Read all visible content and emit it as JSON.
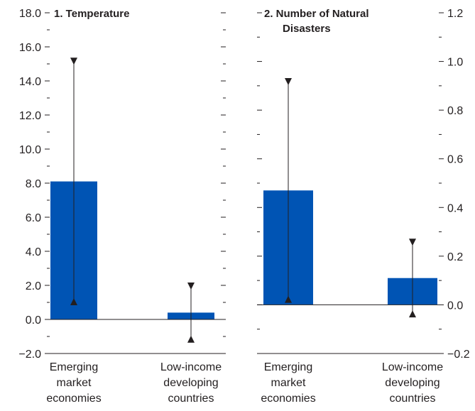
{
  "chart_data": [
    {
      "type": "bar",
      "title": "1. Temperature",
      "title_lines": [
        "1. Temperature"
      ],
      "categories": [
        "Emerging market economies",
        "Low-income developing countries"
      ],
      "category_lines": [
        [
          "Emerging",
          "market",
          "economies"
        ],
        [
          "Low-income",
          "developing",
          "countries"
        ]
      ],
      "values": [
        8.1,
        0.4
      ],
      "upper": [
        15.2,
        2.0
      ],
      "lower": [
        1.0,
        -1.2
      ],
      "ylim": [
        -2.0,
        18.0
      ],
      "left_ticks": [
        -2.0,
        0.0,
        2.0,
        4.0,
        6.0,
        8.0,
        10.0,
        12.0,
        14.0,
        16.0,
        18.0
      ],
      "left_tick_labels": [
        "−2.0",
        "0.0",
        "2.0",
        "4.0",
        "6.0",
        "8.0",
        "10.0",
        "12.0",
        "14.0",
        "16.0",
        "18.0"
      ],
      "minor_ticks": [
        -1.0,
        1.0,
        3.0,
        5.0,
        7.0,
        9.0,
        11.0,
        13.0,
        15.0,
        17.0
      ],
      "bar_color": "#0054b4"
    },
    {
      "type": "bar",
      "title": "2. Number of Natural Disasters",
      "title_lines": [
        "2. Number of Natural",
        "Disasters"
      ],
      "categories": [
        "Emerging market economies",
        "Low-income developing countries"
      ],
      "category_lines": [
        [
          "Emerging",
          "market",
          "economies"
        ],
        [
          "Low-income",
          "developing",
          "countries"
        ]
      ],
      "values": [
        0.47,
        0.11
      ],
      "upper": [
        0.92,
        0.26
      ],
      "lower": [
        0.02,
        -0.04
      ],
      "ylim": [
        -0.2,
        1.2
      ],
      "right_ticks": [
        -0.2,
        0.0,
        0.2,
        0.4,
        0.6,
        0.8,
        1.0,
        1.2
      ],
      "right_tick_labels": [
        "−0.2",
        "0.0",
        "0.2",
        "0.4",
        "0.6",
        "0.8",
        "1.0",
        "1.2"
      ],
      "minor_ticks": [
        -0.1,
        0.1,
        0.3,
        0.5,
        0.7,
        0.9,
        1.1
      ],
      "bar_color": "#0054b4"
    }
  ]
}
